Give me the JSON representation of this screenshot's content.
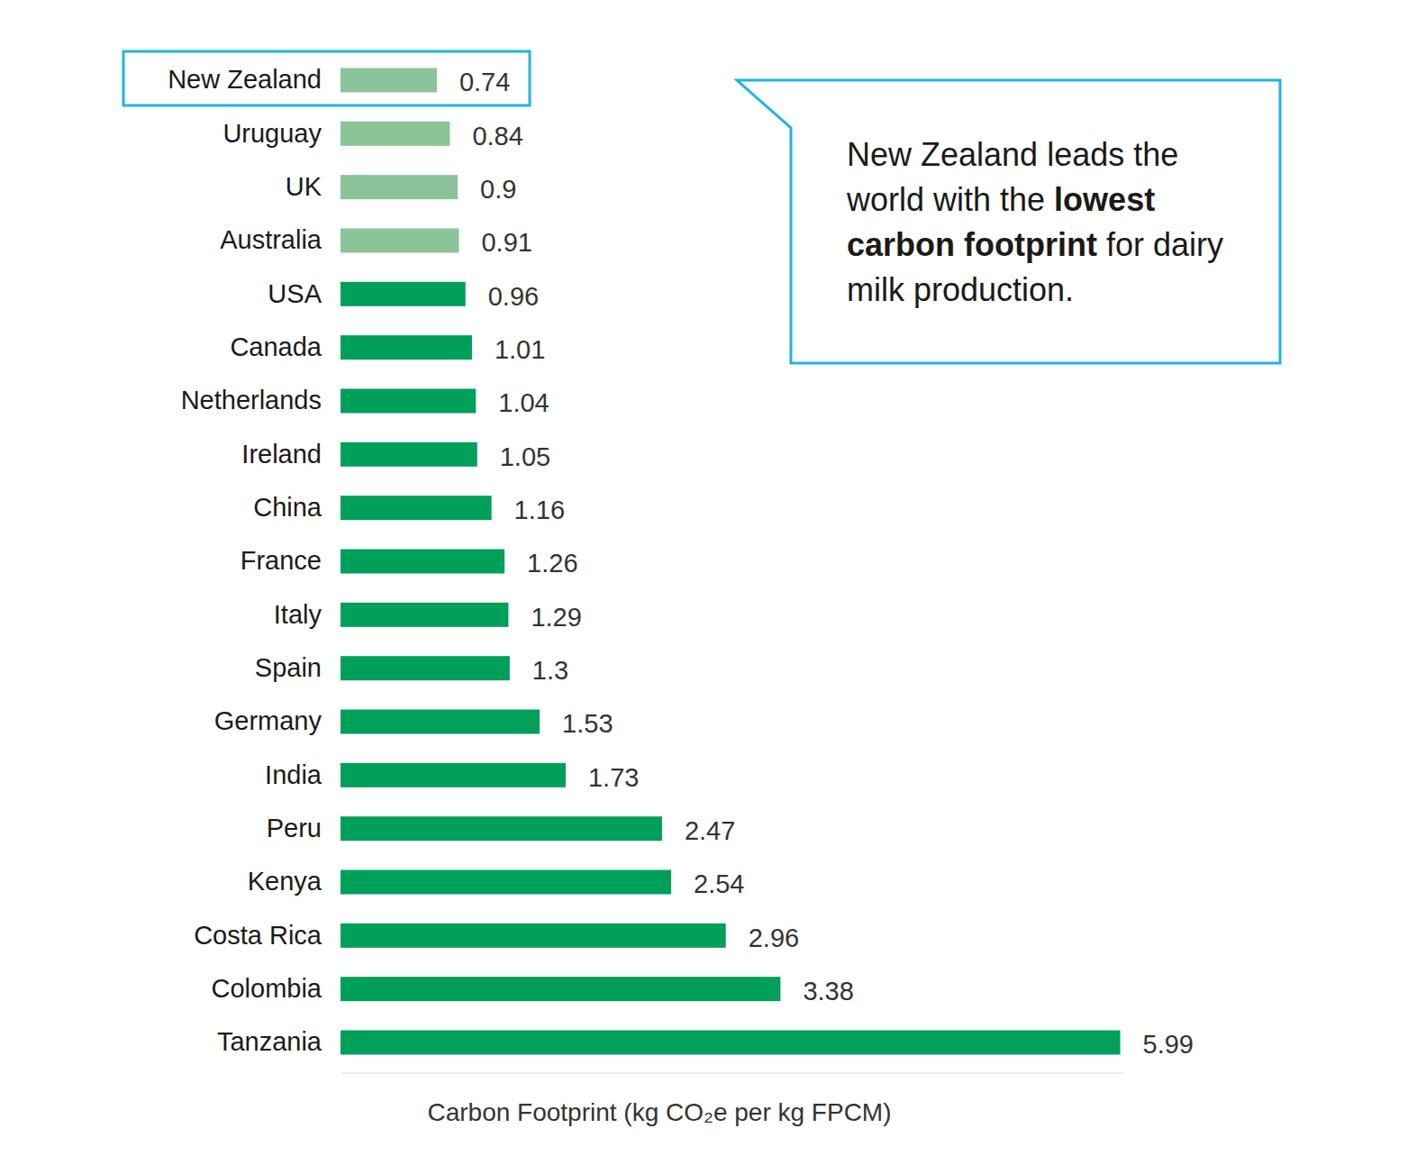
{
  "chart_data": {
    "type": "bar",
    "orientation": "horizontal",
    "categories": [
      "New Zealand",
      "Uruguay",
      "UK",
      "Australia",
      "USA",
      "Canada",
      "Netherlands",
      "Ireland",
      "China",
      "France",
      "Italy",
      "Spain",
      "Germany",
      "India",
      "Peru",
      "Kenya",
      "Costa Rica",
      "Colombia",
      "Tanzania"
    ],
    "values": [
      0.74,
      0.84,
      0.9,
      0.91,
      0.96,
      1.01,
      1.04,
      1.05,
      1.16,
      1.26,
      1.29,
      1.3,
      1.53,
      1.73,
      2.47,
      2.54,
      2.96,
      3.38,
      5.99
    ],
    "colors": [
      "#8cc49a",
      "#8cc49a",
      "#8cc49a",
      "#8cc49a",
      "#00a05a",
      "#00a05a",
      "#00a05a",
      "#00a05a",
      "#00a05a",
      "#00a05a",
      "#00a05a",
      "#00a05a",
      "#00a05a",
      "#00a05a",
      "#00a05a",
      "#00a05a",
      "#00a05a",
      "#00a05a",
      "#00a05a"
    ],
    "xlabel": "Carbon Footprint (kg CO₂e per kg FPCM)",
    "xlim": [
      0,
      6
    ],
    "data_labels": true,
    "tick_labels": "y",
    "grid": false,
    "annotation": [
      "New Zealand leads the world with the ",
      "lowest carbon footprint",
      " for dairy milk production."
    ]
  }
}
